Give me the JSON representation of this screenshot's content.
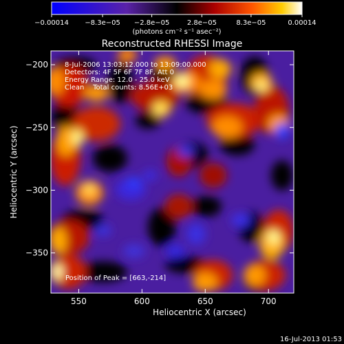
{
  "chart_data": {
    "type": "heatmap",
    "title": "Reconstructed RHESSI Image",
    "xlabel": "Heliocentric X (arcsec)",
    "ylabel": "Heliocentric Y (arcsec)",
    "xlim": [
      528,
      720
    ],
    "ylim": [
      -382,
      -189
    ],
    "x_ticks": [
      550,
      600,
      650,
      700
    ],
    "y_ticks": [
      -200,
      -250,
      -300,
      -350
    ],
    "x_tick_labels": [
      "550",
      "600",
      "650",
      "700"
    ],
    "y_tick_labels": [
      "−200",
      "−250",
      "−300",
      "−350"
    ],
    "colorbar": {
      "range": [
        -0.00014,
        0.00014
      ],
      "ticks": [
        -0.00014,
        -8.3e-05,
        -2.8e-05,
        2.8e-05,
        8.3e-05,
        0.00014
      ],
      "tick_labels": [
        "−0.00014",
        "−8.3e−05",
        "−2.8e−05",
        "2.8e−05",
        "8.3e−05",
        "0.00014"
      ],
      "unit_label": "(photons cm⁻² s⁻¹ asec⁻²)",
      "colors": [
        "#0000ff",
        "#5a22a8",
        "#000000",
        "#aa0000",
        "#ff5500",
        "#ffcc00",
        "#ffffff"
      ]
    },
    "annotations": [
      "8-Jul-2006 13:03:12.000 to 13:09:00.000",
      "Detectors: 4F 5F 6F 7F 8F, Att 0",
      "Energy Range: 12.0 - 25.0 keV",
      "Clean    Total counts: 8.56E+03"
    ],
    "peak_label": "Position of Peak = [663,-214]",
    "peak_position": [
      663,
      -214
    ],
    "total_counts": 8560,
    "energy_range_kev": [
      12.0,
      25.0
    ]
  },
  "footer": {
    "timestamp": "16-Jul-2013 01:53"
  }
}
